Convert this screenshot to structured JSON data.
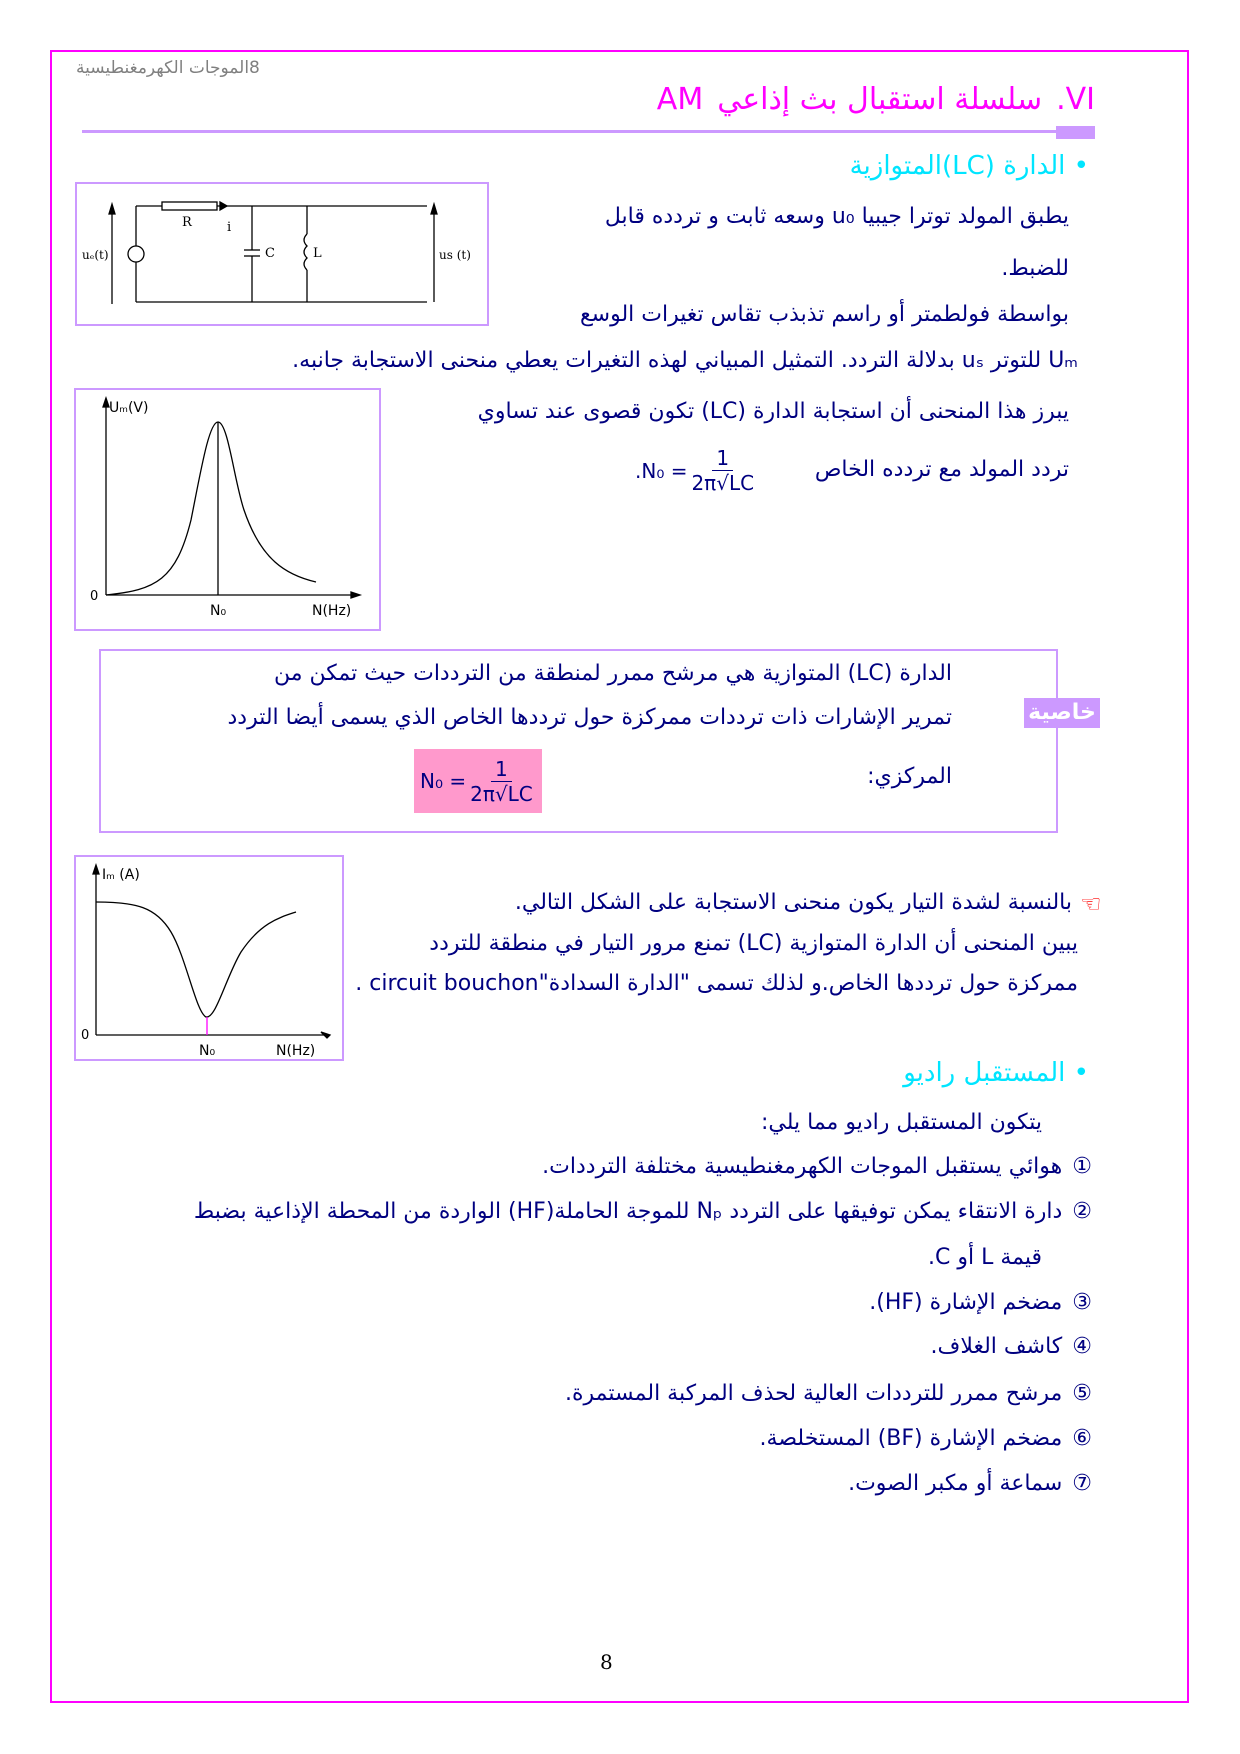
{
  "header": {
    "running_title": "8الموجات الكهرمغنطيسية"
  },
  "title": {
    "numeral": ".VI",
    "text": "سلسلة استقبال بث إذاعي",
    "suffix": "AM"
  },
  "section1": {
    "heading": "• الدارة (LC)المتوازية",
    "circuit_labels": {
      "R": "R",
      "i": "i",
      "C": "C",
      "L": "L",
      "ue": "uₑ(t)",
      "us": "us (t)"
    },
    "paragraph": [
      "يطبق المولد توترا جيبيا u₀ وسعه ثابت و تردده قابل",
      "للضبط.",
      "بواسطة فولطمتر أو راسم تذبذب تقاس تغيرات الوسع",
      "Uₘ للتوتر uₛ بدلالة التردد. التمثيل المبياني لهذه التغيرات يعطي منحنى الاستجابة جانبه."
    ],
    "graph": {
      "ylabel": "Uₘ(V)",
      "origin": "0",
      "peak_label": "N₀",
      "xlabel": "N(Hz)"
    },
    "paragraph2": [
      "يبرز هذا المنحنى أن استجابة الدارة (LC) تكون قصوى عند تساوي",
      "تردد المولد مع تردده الخاص"
    ],
    "formula": {
      "lhs": ".N₀ =",
      "numerator": "1",
      "denominator": "2π√LC"
    }
  },
  "property": {
    "tag": "خاصية",
    "lines": [
      "الدارة (LC) المتوازية  هي مرشح ممرر لمنطقة من الترددات حيث تمكن من",
      "تمرير الإشارات ذات ترددات ممركزة حول ترددها الخاص الذي يسمى أيضا  التردد",
      "المركزي:"
    ],
    "formula": {
      "lhs": "N₀ =",
      "numerator": "1",
      "denominator": "2π√LC"
    }
  },
  "section_current": {
    "graph": {
      "ylabel": "Iₘ (A)",
      "origin": "0",
      "dip_label": "N₀",
      "xlabel": "N(Hz)"
    },
    "lines": [
      "بالنسبة لشدة التيار يكون منحنى الاستجابة على الشكل التالي.",
      "يبين المنحنى أن الدارة المتوازية (LC) تمنع مرور التيار في منطقة للتردد",
      "ممركزة حول ترددها الخاص.و لذلك تسمى \"الدارة السدادة\"circuit bouchon ."
    ]
  },
  "section2": {
    "heading": "• المستقبل راديو",
    "intro": "يتكون المستقبل راديو مما يلي:",
    "items": [
      {
        "num": "①",
        "text": "هوائي يستقبل الموجات الكهرمغنطيسية مختلفة الترددات."
      },
      {
        "num": "②",
        "text": "دارة الانتقاء يمكن توفيقها على التردد Nₚ للموجة الحاملة(HF) الواردة من المحطة الإذاعية بضبط"
      },
      {
        "num": "",
        "text": "قيمة L أو C."
      },
      {
        "num": "③",
        "text": "مضخم الإشارة (HF)."
      },
      {
        "num": "④",
        "text": "كاشف الغلاف."
      },
      {
        "num": "⑤",
        "text": "مرشح ممرر للترددات العالية لحذف المركبة المستمرة."
      },
      {
        "num": "⑥",
        "text": "مضخم الإشارة (BF) المستخلصة."
      },
      {
        "num": "⑦",
        "text": "سماعة أو مكبر الصوت."
      }
    ]
  },
  "footer": {
    "page_number": "8"
  },
  "colors": {
    "border": "#ff00ff",
    "title": "#ff00ff",
    "heading": "#00e5ff",
    "text": "#000080",
    "accent": "#cc99ff",
    "formula_bg": "#ff99cc"
  }
}
